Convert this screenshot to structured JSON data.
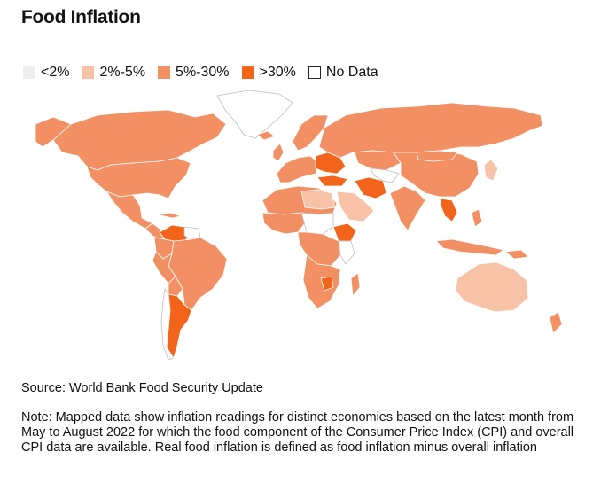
{
  "title": "Food Inflation",
  "legend": [
    {
      "label": "<2%",
      "color": "#efefef",
      "border": "#efefef"
    },
    {
      "label": "2%-5%",
      "color": "#f8c2a6",
      "border": "#f8c2a6"
    },
    {
      "label": "5%-30%",
      "color": "#f29064",
      "border": "#f29064"
    },
    {
      "label": ">30%",
      "color": "#f26419",
      "border": "#f26419"
    },
    {
      "label": "No Data",
      "color": "#ffffff",
      "border": "#222222"
    }
  ],
  "source": "Source: World Bank Food Security Update",
  "note": "Note: Mapped data show inflation readings for distinct economies based on the latest month from May to August 2022 for which the food component of the Consumer Price Index (CPI) and overall CPI data are available. Real food inflation is defined as food inflation minus overall inflation",
  "colors": {
    "low": "#efefef",
    "mid": "#f8c2a6",
    "high": "#f29064",
    "veryhigh": "#f26419",
    "nodata": "#ffffff",
    "border": "#ffffff"
  }
}
